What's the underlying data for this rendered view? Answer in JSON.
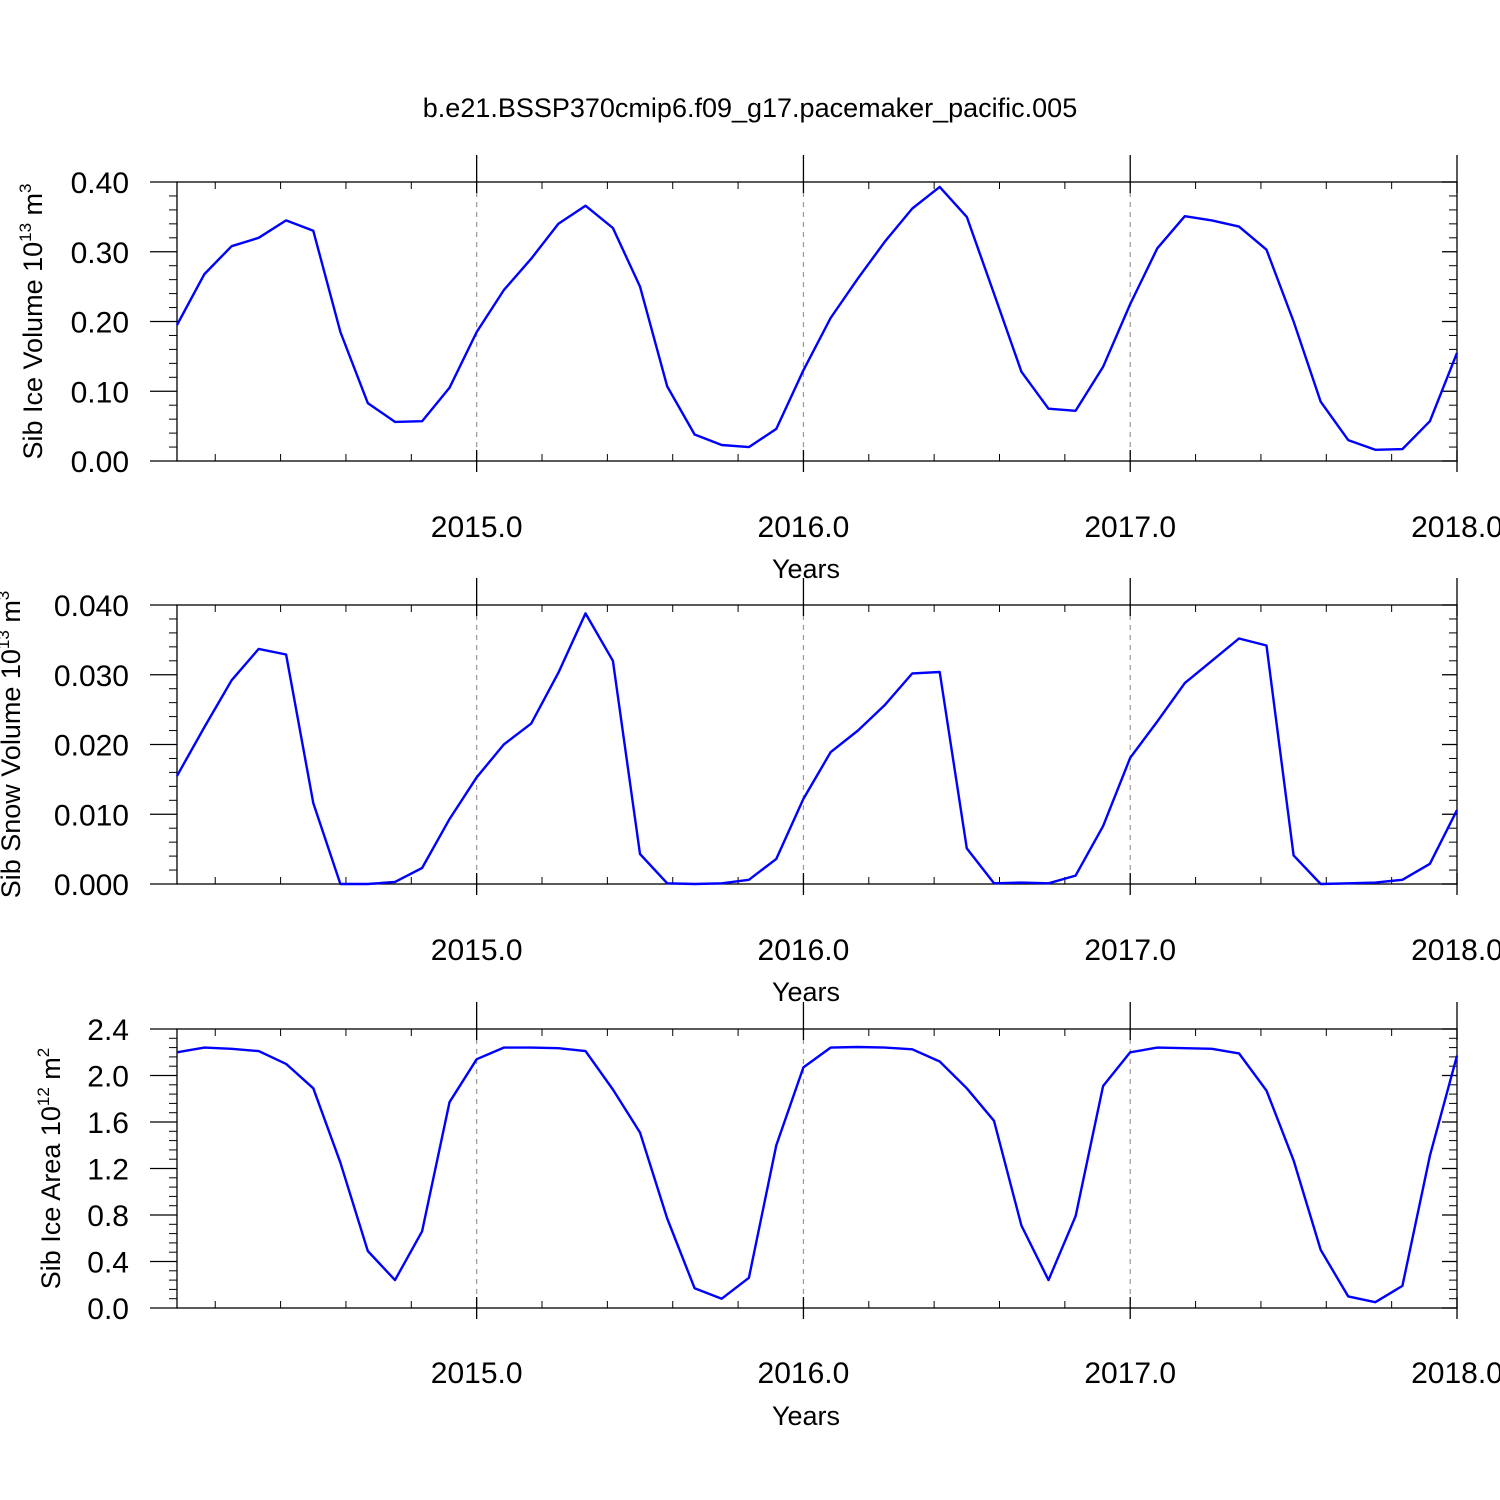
{
  "figure": {
    "title": "b.e21.BSSP370cmip6.f09_g17.pacemaker_pacific.005",
    "line_color": "#0000ff",
    "grid_color": "#999999"
  },
  "chart_data": [
    {
      "type": "line",
      "title": "b.e21.BSSP370cmip6.f09_g17.pacemaker_pacific.005",
      "xlabel": "Years",
      "ylabel": "Sib Ice Volume 10",
      "ylabel_exp": "13",
      "ylabel_unit": " m",
      "ylabel_unit_exp": "3",
      "xlim": [
        2014.083,
        2018.0
      ],
      "ylim": [
        0.0,
        0.4
      ],
      "x_ticks": [
        2015.0,
        2016.0,
        2017.0,
        2018.0
      ],
      "x_tick_labels": [
        "2015.0",
        "2016.0",
        "2017.0",
        "2018.0"
      ],
      "y_ticks": [
        0.0,
        0.1,
        0.2,
        0.3,
        0.4
      ],
      "y_tick_labels": [
        "0.00",
        "0.10",
        "0.20",
        "0.30",
        "0.40"
      ],
      "grid": "vertical dashed at major x ticks",
      "series": [
        {
          "x": [
            2014.083,
            2014.167,
            2014.25,
            2014.333,
            2014.417,
            2014.5,
            2014.583,
            2014.667,
            2014.75,
            2014.833,
            2014.917,
            2015.0,
            2015.083,
            2015.167,
            2015.25,
            2015.333,
            2015.417,
            2015.5,
            2015.583,
            2015.667,
            2015.75,
            2015.833,
            2015.917,
            2016.0,
            2016.083,
            2016.167,
            2016.25,
            2016.333,
            2016.417,
            2016.5,
            2016.583,
            2016.667,
            2016.75,
            2016.833,
            2016.917,
            2017.0,
            2017.083,
            2017.167,
            2017.25,
            2017.333,
            2017.417,
            2017.5,
            2017.583,
            2017.667,
            2017.75,
            2017.833,
            2017.917,
            2018.0
          ],
          "values": [
            0.195,
            0.268,
            0.308,
            0.32,
            0.345,
            0.33,
            0.185,
            0.083,
            0.056,
            0.057,
            0.105,
            0.185,
            0.245,
            0.29,
            0.34,
            0.366,
            0.334,
            0.25,
            0.107,
            0.038,
            0.023,
            0.02,
            0.046,
            0.13,
            0.205,
            0.262,
            0.315,
            0.362,
            0.393,
            0.35,
            0.24,
            0.128,
            0.075,
            0.072,
            0.135,
            0.225,
            0.305,
            0.351,
            0.345,
            0.336,
            0.303,
            0.2,
            0.085,
            0.03,
            0.016,
            0.017,
            0.057,
            0.155
          ]
        }
      ]
    },
    {
      "type": "line",
      "xlabel": "Years",
      "ylabel": "Sib Snow Volume 10",
      "ylabel_exp": "13",
      "ylabel_unit": " m",
      "ylabel_unit_exp": "3",
      "xlim": [
        2014.083,
        2018.0
      ],
      "ylim": [
        0.0,
        0.04
      ],
      "x_ticks": [
        2015.0,
        2016.0,
        2017.0,
        2018.0
      ],
      "x_tick_labels": [
        "2015.0",
        "2016.0",
        "2017.0",
        "2018.0"
      ],
      "y_ticks": [
        0.0,
        0.01,
        0.02,
        0.03,
        0.04
      ],
      "y_tick_labels": [
        "0.000",
        "0.010",
        "0.020",
        "0.030",
        "0.040"
      ],
      "grid": "vertical dashed at major x ticks",
      "series": [
        {
          "x": [
            2014.083,
            2014.167,
            2014.25,
            2014.333,
            2014.417,
            2014.5,
            2014.583,
            2014.667,
            2014.75,
            2014.833,
            2014.917,
            2015.0,
            2015.083,
            2015.167,
            2015.25,
            2015.333,
            2015.417,
            2015.5,
            2015.583,
            2015.667,
            2015.75,
            2015.833,
            2015.917,
            2016.0,
            2016.083,
            2016.167,
            2016.25,
            2016.333,
            2016.417,
            2016.5,
            2016.583,
            2016.667,
            2016.75,
            2016.833,
            2016.917,
            2017.0,
            2017.083,
            2017.167,
            2017.25,
            2017.333,
            2017.417,
            2017.5,
            2017.583,
            2017.667,
            2017.75,
            2017.833,
            2017.917,
            2018.0
          ],
          "values": [
            0.0155,
            0.0225,
            0.0292,
            0.0337,
            0.0329,
            0.0116,
            0.0,
            0.0,
            0.0003,
            0.0023,
            0.0093,
            0.0153,
            0.02,
            0.023,
            0.0303,
            0.0388,
            0.032,
            0.0043,
            0.0001,
            0.0,
            0.0001,
            0.0006,
            0.0036,
            0.0122,
            0.0189,
            0.022,
            0.0257,
            0.0302,
            0.0304,
            0.0051,
            0.0001,
            0.0002,
            0.0001,
            0.0012,
            0.0083,
            0.0181,
            0.0233,
            0.0288,
            0.032,
            0.0352,
            0.0342,
            0.0041,
            0.0,
            0.0001,
            0.0002,
            0.0006,
            0.0029,
            0.0106
          ]
        }
      ]
    },
    {
      "type": "line",
      "xlabel": "Years",
      "ylabel": "Sib Ice Area 10",
      "ylabel_exp": "12",
      "ylabel_unit": " m",
      "ylabel_unit_exp": "2",
      "xlim": [
        2014.083,
        2018.0
      ],
      "ylim": [
        0.0,
        2.4
      ],
      "x_ticks": [
        2015.0,
        2016.0,
        2017.0,
        2018.0
      ],
      "x_tick_labels": [
        "2015.0",
        "2016.0",
        "2017.0",
        "2018.0"
      ],
      "y_ticks": [
        0.0,
        0.4,
        0.8,
        1.2,
        1.6,
        2.0,
        2.4
      ],
      "y_tick_labels": [
        "0.0",
        "0.4",
        "0.8",
        "1.2",
        "1.6",
        "2.0",
        "2.4"
      ],
      "grid": "vertical dashed at major x ticks",
      "series": [
        {
          "x": [
            2014.083,
            2014.167,
            2014.25,
            2014.333,
            2014.417,
            2014.5,
            2014.583,
            2014.667,
            2014.75,
            2014.833,
            2014.917,
            2015.0,
            2015.083,
            2015.167,
            2015.25,
            2015.333,
            2015.417,
            2015.5,
            2015.583,
            2015.667,
            2015.75,
            2015.833,
            2015.917,
            2016.0,
            2016.083,
            2016.167,
            2016.25,
            2016.333,
            2016.417,
            2016.5,
            2016.583,
            2016.667,
            2016.75,
            2016.833,
            2016.917,
            2017.0,
            2017.083,
            2017.167,
            2017.25,
            2017.333,
            2017.417,
            2017.5,
            2017.583,
            2017.667,
            2017.75,
            2017.833,
            2017.917,
            2018.0
          ],
          "values": [
            2.2,
            2.24,
            2.23,
            2.21,
            2.1,
            1.89,
            1.25,
            0.49,
            0.24,
            0.66,
            1.77,
            2.14,
            2.24,
            2.24,
            2.235,
            2.21,
            1.88,
            1.51,
            0.77,
            0.17,
            0.08,
            0.26,
            1.4,
            2.07,
            2.24,
            2.245,
            2.24,
            2.225,
            2.12,
            1.89,
            1.61,
            0.71,
            0.24,
            0.79,
            1.91,
            2.2,
            2.24,
            2.235,
            2.23,
            2.19,
            1.87,
            1.27,
            0.5,
            0.1,
            0.05,
            0.19,
            1.31,
            2.17
          ]
        }
      ]
    }
  ]
}
